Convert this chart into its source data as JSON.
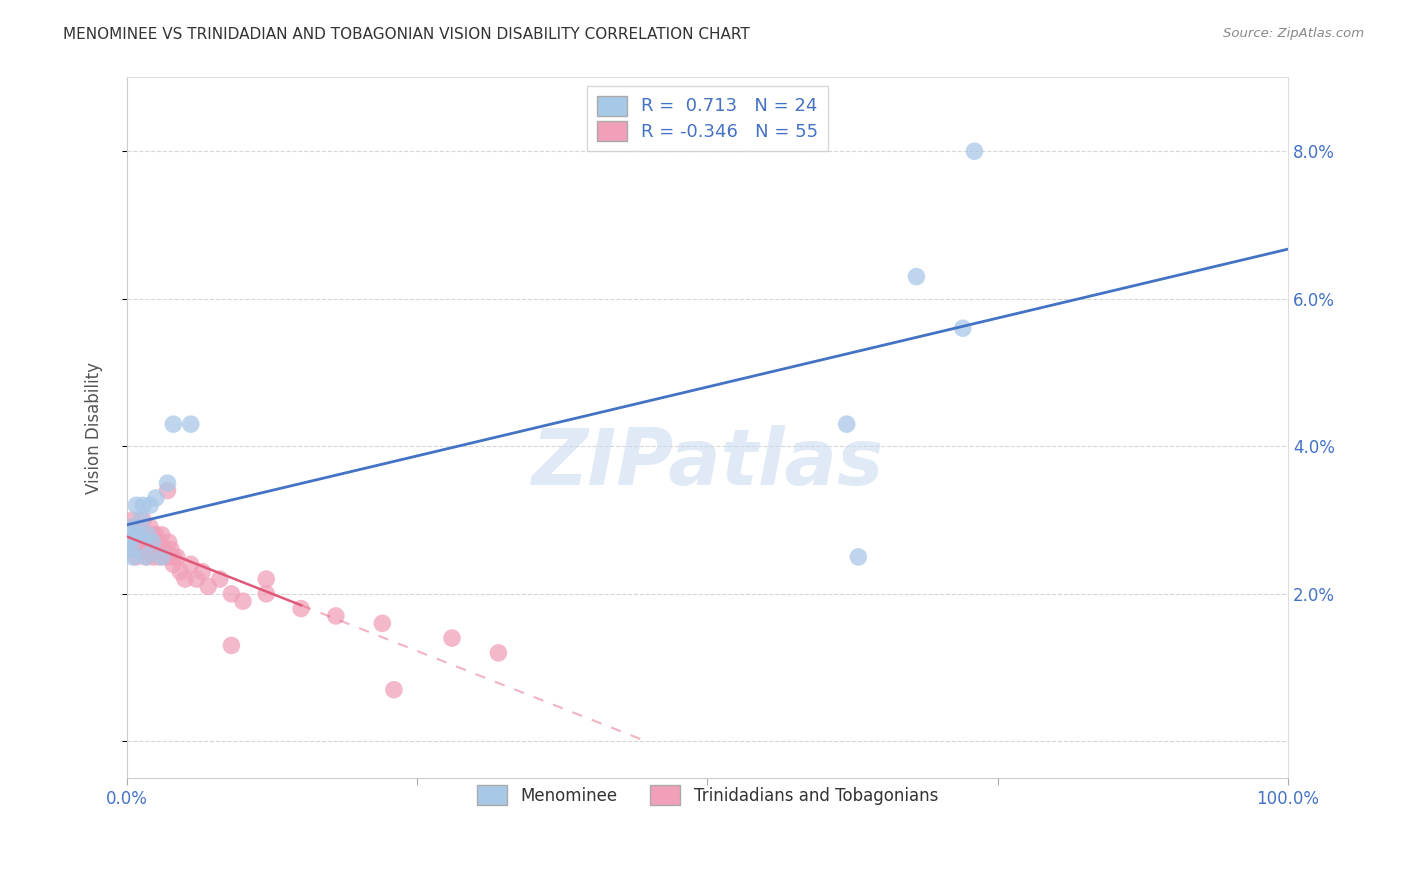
{
  "title": "MENOMINEE VS TRINIDADIAN AND TOBAGONIAN VISION DISABILITY CORRELATION CHART",
  "source": "Source: ZipAtlas.com",
  "ylabel": "Vision Disability",
  "xlim": [
    0.0,
    1.0
  ],
  "ylim": [
    -0.005,
    0.09
  ],
  "yticks": [
    0.0,
    0.02,
    0.04,
    0.06,
    0.08
  ],
  "ytick_labels": [
    "",
    "2.0%",
    "4.0%",
    "6.0%",
    "8.0%"
  ],
  "xticks": [
    0.0,
    0.25,
    0.5,
    0.75,
    1.0
  ],
  "xtick_labels": [
    "0.0%",
    "",
    "",
    "",
    "100.0%"
  ],
  "menominee_r": 0.713,
  "menominee_n": 24,
  "trinidadian_r": -0.346,
  "trinidadian_n": 55,
  "menominee_color": "#a8c8e8",
  "trinidadian_color": "#f0a0b8",
  "trend_blue": "#4472c4",
  "trend_pink": "#e05878",
  "watermark_color": "#c8d8f0",
  "legend_label_1": "Menominee",
  "legend_label_2": "Trinidadians and Tobagonians",
  "menominee_x": [
    0.001,
    0.002,
    0.003,
    0.004,
    0.005,
    0.006,
    0.008,
    0.01,
    0.012,
    0.014,
    0.016,
    0.018,
    0.02,
    0.022,
    0.025,
    0.03,
    0.035,
    0.04,
    0.055,
    0.62,
    0.63,
    0.68,
    0.72,
    0.73
  ],
  "menominee_y": [
    0.027,
    0.029,
    0.028,
    0.026,
    0.025,
    0.028,
    0.032,
    0.028,
    0.03,
    0.032,
    0.025,
    0.028,
    0.032,
    0.027,
    0.033,
    0.025,
    0.035,
    0.043,
    0.043,
    0.043,
    0.025,
    0.063,
    0.056,
    0.08
  ],
  "trinidadian_x": [
    0.001,
    0.002,
    0.003,
    0.004,
    0.005,
    0.006,
    0.007,
    0.008,
    0.009,
    0.01,
    0.011,
    0.012,
    0.013,
    0.014,
    0.015,
    0.016,
    0.017,
    0.018,
    0.019,
    0.02,
    0.021,
    0.022,
    0.023,
    0.024,
    0.025,
    0.026,
    0.027,
    0.028,
    0.03,
    0.032,
    0.034,
    0.036,
    0.038,
    0.04,
    0.043,
    0.046,
    0.05,
    0.055,
    0.06,
    0.065,
    0.07,
    0.08,
    0.09,
    0.1,
    0.12,
    0.15,
    0.18,
    0.22,
    0.28,
    0.32,
    0.035,
    0.04,
    0.09,
    0.12,
    0.23
  ],
  "trinidadian_y": [
    0.028,
    0.027,
    0.029,
    0.026,
    0.03,
    0.027,
    0.028,
    0.025,
    0.029,
    0.028,
    0.027,
    0.026,
    0.028,
    0.03,
    0.027,
    0.026,
    0.025,
    0.028,
    0.027,
    0.029,
    0.026,
    0.028,
    0.025,
    0.027,
    0.028,
    0.026,
    0.027,
    0.025,
    0.028,
    0.026,
    0.025,
    0.027,
    0.026,
    0.024,
    0.025,
    0.023,
    0.022,
    0.024,
    0.022,
    0.023,
    0.021,
    0.022,
    0.02,
    0.019,
    0.02,
    0.018,
    0.017,
    0.016,
    0.014,
    0.012,
    0.034,
    0.025,
    0.013,
    0.022,
    0.007
  ]
}
